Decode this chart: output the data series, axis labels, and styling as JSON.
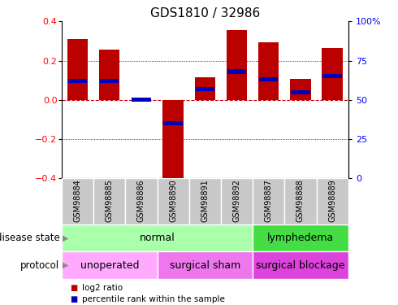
{
  "title": "GDS1810 / 32986",
  "samples": [
    "GSM98884",
    "GSM98885",
    "GSM98886",
    "GSM98890",
    "GSM98891",
    "GSM98892",
    "GSM98887",
    "GSM98888",
    "GSM98889"
  ],
  "log2_ratio": [
    0.31,
    0.255,
    0.0,
    -0.42,
    0.115,
    0.355,
    0.295,
    0.105,
    0.265
  ],
  "percentile_rank": [
    62,
    62,
    50,
    35,
    57,
    68,
    63,
    55,
    65
  ],
  "ylim": [
    -0.4,
    0.4
  ],
  "right_ylim": [
    0,
    100
  ],
  "right_yticks": [
    0,
    25,
    50,
    75,
    100
  ],
  "right_yticklabels": [
    "0",
    "25",
    "50",
    "75",
    "100%"
  ],
  "left_yticks": [
    -0.4,
    -0.2,
    0.0,
    0.2,
    0.4
  ],
  "bar_color": "#bb0000",
  "dot_color": "#0000bb",
  "hline_color": "#cc0000",
  "grid_color": "black",
  "disease_state_groups": [
    {
      "label": "normal",
      "start": 0,
      "end": 6,
      "color": "#aaffaa"
    },
    {
      "label": "lymphedema",
      "start": 6,
      "end": 9,
      "color": "#44dd44"
    }
  ],
  "protocol_groups": [
    {
      "label": "unoperated",
      "start": 0,
      "end": 3,
      "color": "#ffaaff"
    },
    {
      "label": "surgical sham",
      "start": 3,
      "end": 6,
      "color": "#ee77ee"
    },
    {
      "label": "surgical blockage",
      "start": 6,
      "end": 9,
      "color": "#dd44dd"
    }
  ],
  "legend_items": [
    {
      "label": "log2 ratio",
      "color": "#bb0000"
    },
    {
      "label": "percentile rank within the sample",
      "color": "#0000bb"
    }
  ],
  "sample_box_color": "#c8c8c8",
  "background_color": "#ffffff",
  "title_fontsize": 11,
  "tick_fontsize": 8,
  "label_fontsize": 9,
  "sample_fontsize": 7,
  "row_label_fontsize": 8.5
}
